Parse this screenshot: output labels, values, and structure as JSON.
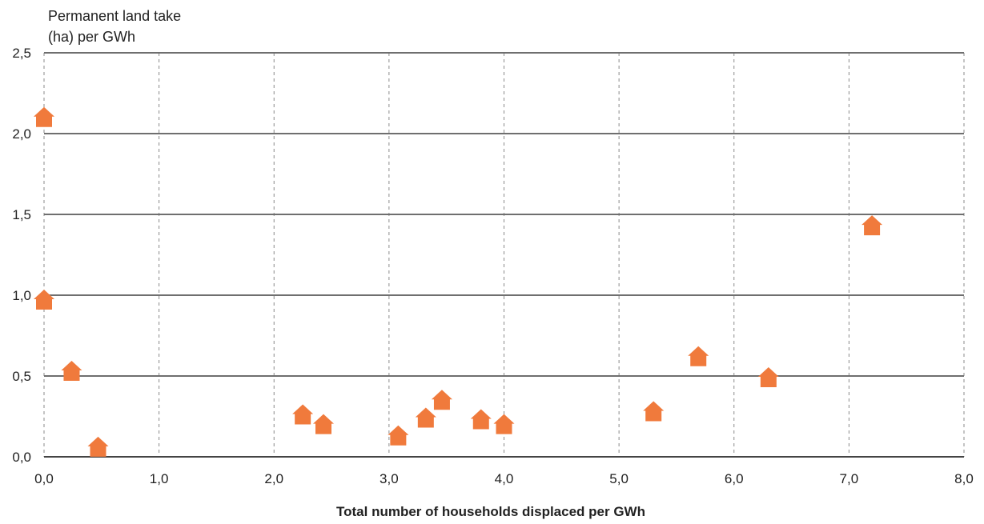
{
  "chart_data": {
    "type": "scatter",
    "title": "",
    "ylabel_lines": [
      "Permanent land take",
      "(ha) per GWh"
    ],
    "xlabel": "Total number of households displaced per GWh",
    "xlim": [
      0,
      8
    ],
    "ylim": [
      0,
      2.5
    ],
    "x_ticks": [
      {
        "value": 0,
        "label": "0,0"
      },
      {
        "value": 1,
        "label": "1,0"
      },
      {
        "value": 2,
        "label": "2,0"
      },
      {
        "value": 3,
        "label": "3,0"
      },
      {
        "value": 4,
        "label": "4,0"
      },
      {
        "value": 5,
        "label": "5,0"
      },
      {
        "value": 6,
        "label": "6,0"
      },
      {
        "value": 7,
        "label": "7,0"
      },
      {
        "value": 8,
        "label": "8,0"
      }
    ],
    "y_ticks": [
      {
        "value": 0,
        "label": "0,0"
      },
      {
        "value": 0.5,
        "label": "0,5"
      },
      {
        "value": 1.0,
        "label": "1,0"
      },
      {
        "value": 1.5,
        "label": "1,5"
      },
      {
        "value": 2.0,
        "label": "2,0"
      },
      {
        "value": 2.5,
        "label": "2,5"
      }
    ],
    "grid": {
      "horizontal": "solid",
      "vertical": "dashed"
    },
    "marker": "house-icon",
    "marker_color": "#F07A3C",
    "points": [
      {
        "x": 0.0,
        "y": 2.1
      },
      {
        "x": 0.0,
        "y": 0.97
      },
      {
        "x": 0.24,
        "y": 0.53
      },
      {
        "x": 0.47,
        "y": 0.06
      },
      {
        "x": 2.25,
        "y": 0.26
      },
      {
        "x": 2.43,
        "y": 0.2
      },
      {
        "x": 3.08,
        "y": 0.13
      },
      {
        "x": 3.32,
        "y": 0.24
      },
      {
        "x": 3.46,
        "y": 0.35
      },
      {
        "x": 3.8,
        "y": 0.23
      },
      {
        "x": 4.0,
        "y": 0.2
      },
      {
        "x": 5.3,
        "y": 0.28
      },
      {
        "x": 5.69,
        "y": 0.62
      },
      {
        "x": 6.3,
        "y": 0.49
      },
      {
        "x": 7.2,
        "y": 1.43
      }
    ]
  }
}
